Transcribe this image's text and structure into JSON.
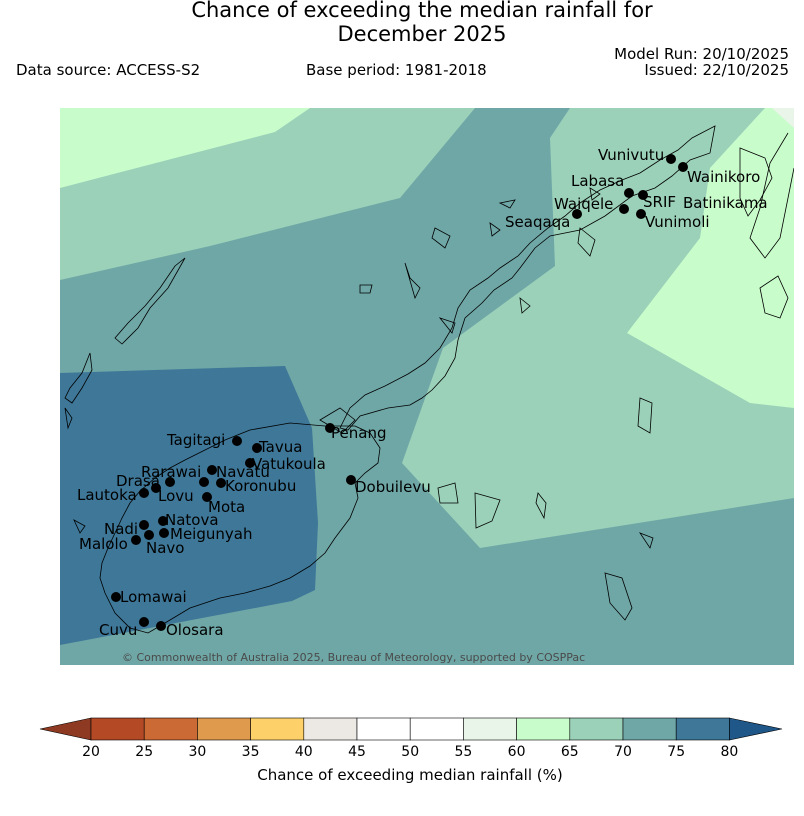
{
  "header": {
    "title_line1": "Chance of exceeding the median rainfall for",
    "title_line2": "December 2025",
    "data_source": "Data source: ACCESS-S2",
    "base_period": "Base period: 1981-2018",
    "model_run": "Model Run: 20/10/2025",
    "issued": "Issued: 22/10/2025"
  },
  "map": {
    "copyright": "© Commonwealth of Australia 2025, Bureau of Meteorology, supported by COSPPac",
    "stations": [
      "Vunivutu",
      "Wainikoro",
      "Labasa",
      "Waiqele",
      "SRIF",
      "Batinikama",
      "Seaqaqa",
      "Vunimoli",
      "Penang",
      "Tagitagi",
      "Tavua",
      "Vatukoula",
      "Rarawai",
      "Navatu",
      "Drasa",
      "Koronubu",
      "Lautoka",
      "Lovu",
      "Mota",
      "Nadi",
      "Natova",
      "Meigunyah",
      "Malolo",
      "Navo",
      "Lomawai",
      "Cuvu",
      "Olosara",
      "Dobuilevu"
    ]
  },
  "colorbar": {
    "ticks": [
      "20",
      "25",
      "30",
      "35",
      "40",
      "45",
      "50",
      "55",
      "60",
      "65",
      "70",
      "75",
      "80"
    ],
    "colors": [
      "#b44a25",
      "#cc6a35",
      "#e09a4e",
      "#fdd06a",
      "#ece8e4",
      "#ffffff",
      "#ffffff",
      "#e9f5e9",
      "#c9fccb",
      "#9bd1b9",
      "#6fa7a6",
      "#3e7798"
    ],
    "under_color": "#8e3a22",
    "over_color": "#1f5788",
    "label": "Chance of exceeding median rainfall (%)"
  }
}
